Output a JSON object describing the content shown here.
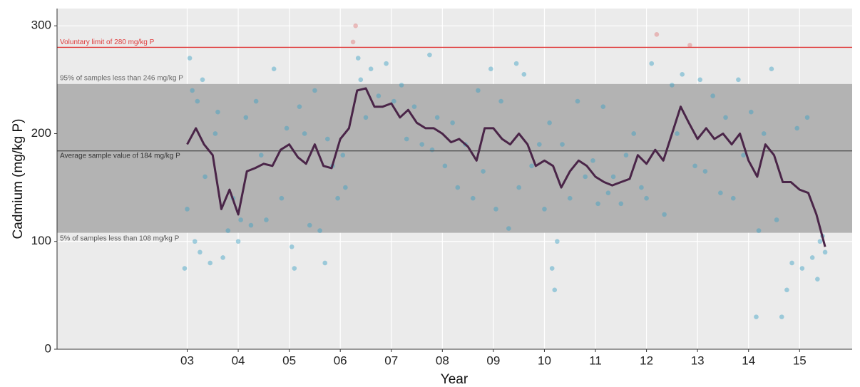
{
  "chart_data": {
    "type": "scatter",
    "xlabel": "Year",
    "ylabel": "Cadmium (mg/kg P)",
    "xlim": [
      2000.45,
      2016.03
    ],
    "ylim": [
      0,
      316
    ],
    "xticks": [
      {
        "value": 2003,
        "label": "03"
      },
      {
        "value": 2004,
        "label": "04"
      },
      {
        "value": 2005,
        "label": "05"
      },
      {
        "value": 2006,
        "label": "06"
      },
      {
        "value": 2007,
        "label": "07"
      },
      {
        "value": 2008,
        "label": "08"
      },
      {
        "value": 2009,
        "label": "09"
      },
      {
        "value": 2010,
        "label": "10"
      },
      {
        "value": 2011,
        "label": "11"
      },
      {
        "value": 2012,
        "label": "12"
      },
      {
        "value": 2013,
        "label": "13"
      },
      {
        "value": 2014,
        "label": "14"
      },
      {
        "value": 2015,
        "label": "15"
      }
    ],
    "yticks": [
      0,
      100,
      200,
      300
    ],
    "grid": true,
    "points": {
      "color": "#3a9fc4",
      "above_limit_color": "#e07878",
      "x": [
        2002.95,
        2003.0,
        2003.05,
        2003.1,
        2003.15,
        2003.2,
        2003.25,
        2003.3,
        2003.35,
        2003.45,
        2003.55,
        2003.6,
        2003.7,
        2003.8,
        2003.9,
        2004.0,
        2004.05,
        2004.15,
        2004.25,
        2004.35,
        2004.45,
        2004.55,
        2004.7,
        2004.85,
        2004.95,
        2005.05,
        2005.1,
        2005.2,
        2005.3,
        2005.4,
        2005.5,
        2005.6,
        2005.7,
        2005.75,
        2005.85,
        2005.95,
        2006.05,
        2006.1,
        2006.25,
        2006.3,
        2006.35,
        2006.4,
        2006.5,
        2006.6,
        2006.75,
        2006.9,
        2007.05,
        2007.2,
        2007.3,
        2007.45,
        2007.6,
        2007.75,
        2007.8,
        2007.9,
        2008.05,
        2008.2,
        2008.3,
        2008.45,
        2008.6,
        2008.7,
        2008.8,
        2008.95,
        2009.05,
        2009.15,
        2009.3,
        2009.45,
        2009.5,
        2009.6,
        2009.75,
        2009.9,
        2010.0,
        2010.1,
        2010.15,
        2010.2,
        2010.25,
        2010.35,
        2010.5,
        2010.65,
        2010.8,
        2010.95,
        2011.05,
        2011.15,
        2011.25,
        2011.35,
        2011.5,
        2011.6,
        2011.75,
        2011.9,
        2012.0,
        2012.1,
        2012.2,
        2012.35,
        2012.5,
        2012.6,
        2012.7,
        2012.85,
        2012.95,
        2013.05,
        2013.15,
        2013.3,
        2013.45,
        2013.55,
        2013.7,
        2013.8,
        2013.9,
        2014.05,
        2014.15,
        2014.2,
        2014.3,
        2014.45,
        2014.55,
        2014.65,
        2014.75,
        2014.85,
        2014.95,
        2015.05,
        2015.15,
        2015.25,
        2015.35,
        2015.4,
        2015.45,
        2015.5
      ],
      "values": [
        75,
        130,
        270,
        240,
        100,
        230,
        90,
        250,
        160,
        80,
        200,
        220,
        85,
        110,
        140,
        100,
        120,
        215,
        115,
        230,
        180,
        120,
        260,
        140,
        205,
        95,
        75,
        225,
        200,
        115,
        240,
        110,
        80,
        195,
        170,
        140,
        180,
        150,
        285,
        300,
        270,
        250,
        215,
        260,
        235,
        265,
        230,
        245,
        195,
        225,
        190,
        273,
        185,
        215,
        170,
        210,
        150,
        190,
        140,
        240,
        165,
        260,
        130,
        230,
        112,
        265,
        150,
        255,
        170,
        190,
        130,
        210,
        75,
        55,
        100,
        190,
        140,
        230,
        160,
        175,
        135,
        225,
        145,
        160,
        135,
        180,
        200,
        150,
        140,
        265,
        292,
        125,
        245,
        200,
        255,
        282,
        170,
        250,
        165,
        235,
        145,
        215,
        140,
        250,
        180,
        220,
        30,
        110,
        200,
        260,
        120,
        30,
        55,
        80,
        205,
        75,
        215,
        85,
        65,
        100,
        105,
        90
      ]
    },
    "trend": {
      "color": "#4a2548",
      "x": [
        2003.0,
        2003.17,
        2003.33,
        2003.5,
        2003.67,
        2003.83,
        2004.0,
        2004.17,
        2004.33,
        2004.5,
        2004.67,
        2004.83,
        2005.0,
        2005.17,
        2005.33,
        2005.5,
        2005.67,
        2005.83,
        2006.0,
        2006.17,
        2006.33,
        2006.5,
        2006.67,
        2006.83,
        2007.0,
        2007.17,
        2007.33,
        2007.5,
        2007.67,
        2007.83,
        2008.0,
        2008.17,
        2008.33,
        2008.5,
        2008.67,
        2008.83,
        2009.0,
        2009.17,
        2009.33,
        2009.5,
        2009.67,
        2009.83,
        2010.0,
        2010.17,
        2010.33,
        2010.5,
        2010.67,
        2010.83,
        2011.0,
        2011.17,
        2011.33,
        2011.5,
        2011.67,
        2011.83,
        2012.0,
        2012.17,
        2012.33,
        2012.5,
        2012.67,
        2012.83,
        2013.0,
        2013.17,
        2013.33,
        2013.5,
        2013.67,
        2013.83,
        2014.0,
        2014.17,
        2014.33,
        2014.5,
        2014.67,
        2014.83,
        2015.0,
        2015.17,
        2015.33,
        2015.5
      ],
      "values": [
        190,
        205,
        190,
        180,
        130,
        148,
        125,
        165,
        168,
        172,
        170,
        185,
        190,
        178,
        172,
        190,
        170,
        168,
        195,
        205,
        240,
        242,
        225,
        225,
        228,
        215,
        222,
        210,
        205,
        205,
        200,
        192,
        195,
        188,
        175,
        205,
        205,
        195,
        190,
        200,
        190,
        170,
        175,
        170,
        150,
        165,
        175,
        170,
        160,
        155,
        152,
        155,
        158,
        180,
        172,
        185,
        175,
        200,
        225,
        210,
        195,
        205,
        195,
        200,
        190,
        200,
        175,
        160,
        190,
        180,
        155,
        155,
        148,
        145,
        125,
        95
      ]
    },
    "band": {
      "lower": 108,
      "upper": 246,
      "color": "#b3b3b3",
      "lower_label": "5% of samples less than 108 mg/kg P",
      "upper_label": "95% of samples less than 246 mg/kg P"
    },
    "average": {
      "value": 184,
      "color": "#555555",
      "label": "Average sample value of 184 mg/kg P"
    },
    "limit": {
      "value": 280,
      "color": "#e03a3a",
      "label": "Voluntary limit of 280 mg/kg P"
    }
  }
}
